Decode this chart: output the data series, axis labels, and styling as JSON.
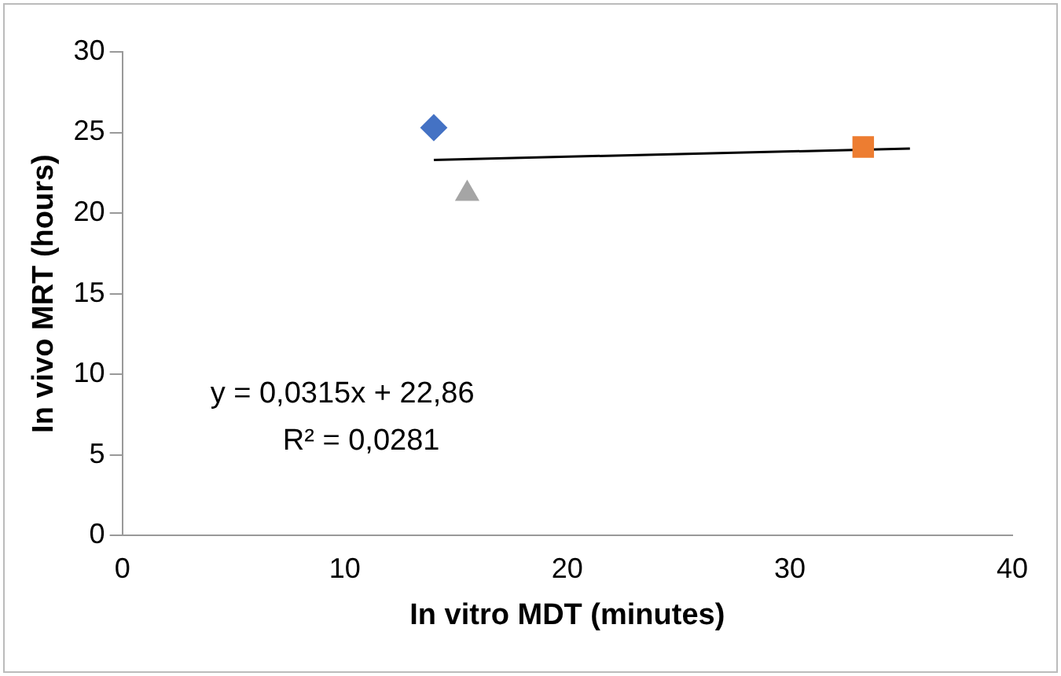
{
  "chart_data": {
    "type": "scatter",
    "xlabel": "In vitro MDT (minutes)",
    "ylabel": "In vivo MRT (hours)",
    "xlim": [
      0,
      40
    ],
    "xticks": [
      0,
      10,
      20,
      30,
      40
    ],
    "ylim": [
      0,
      30
    ],
    "yticks": [
      0,
      5,
      10,
      15,
      20,
      25,
      30
    ],
    "grid": false,
    "legend": false,
    "series": [
      {
        "color": "#4472c4",
        "marker": "diamond",
        "x": [
          14.0
        ],
        "values": [
          25.3
        ]
      },
      {
        "color": "#ed7d31",
        "marker": "square",
        "x": [
          33.3
        ],
        "values": [
          24.1
        ]
      },
      {
        "color": "#a5a5a5",
        "marker": "triangle",
        "x": [
          15.5
        ],
        "values": [
          21.2
        ]
      },
      {
        "type": "line",
        "color": "#000000",
        "marker": "none",
        "x": [
          14.0,
          35.4
        ],
        "values": [
          23.3,
          24.0
        ]
      }
    ],
    "annotations": [
      "y = 0,0315x + 22,86",
      "R² = 0,0281"
    ]
  }
}
